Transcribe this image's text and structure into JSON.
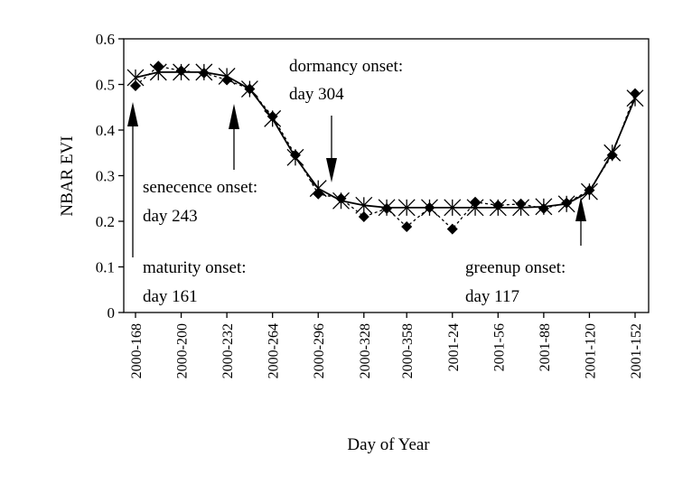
{
  "chart_data": {
    "type": "line",
    "xlabel": "Day of  Year",
    "ylabel": "NBAR EVI",
    "ylim": [
      0,
      0.6
    ],
    "y_ticks": [
      "0",
      "0.1",
      "0.2",
      "0.3",
      "0.4",
      "0.5",
      "0.6"
    ],
    "x_ticks": [
      "2000-168",
      "2000-200",
      "2000-232",
      "2000-264",
      "2000-296",
      "2000-328",
      "2000-358",
      "2001-24",
      "2001-56",
      "2001-88",
      "2001-120",
      "2001-152"
    ],
    "grid": false,
    "legend": "none",
    "series": [
      {
        "marker": "diamond",
        "line": "dashed",
        "x": [
          "2000-168",
          "2000-184",
          "2000-200",
          "2000-216",
          "2000-232",
          "2000-248",
          "2000-264",
          "2000-280",
          "2000-296",
          "2000-312",
          "2000-328",
          "2000-344",
          "2000-358",
          "2001-8",
          "2001-24",
          "2001-40",
          "2001-56",
          "2001-72",
          "2001-88",
          "2001-104",
          "2001-120",
          "2001-136",
          "2001-152"
        ],
        "values": [
          0.497,
          0.54,
          0.53,
          0.525,
          0.51,
          0.49,
          0.43,
          0.345,
          0.26,
          0.25,
          0.21,
          0.228,
          0.188,
          0.23,
          0.183,
          0.242,
          0.235,
          0.238,
          0.228,
          0.24,
          0.268,
          0.345,
          0.48
        ]
      },
      {
        "marker": "asterisk",
        "line": "solid",
        "x": [
          "2000-168",
          "2000-184",
          "2000-200",
          "2000-216",
          "2000-232",
          "2000-248",
          "2000-264",
          "2000-280",
          "2000-296",
          "2000-312",
          "2000-328",
          "2000-344",
          "2000-358",
          "2001-8",
          "2001-24",
          "2001-40",
          "2001-56",
          "2001-72",
          "2001-88",
          "2001-104",
          "2001-120",
          "2001-136",
          "2001-152"
        ],
        "values": [
          0.515,
          0.527,
          0.527,
          0.527,
          0.518,
          0.49,
          0.425,
          0.34,
          0.272,
          0.245,
          0.235,
          0.23,
          0.23,
          0.23,
          0.23,
          0.23,
          0.23,
          0.23,
          0.232,
          0.238,
          0.265,
          0.35,
          0.47
        ]
      }
    ],
    "annotations": [
      {
        "line1": "maturity onset:",
        "line2": "day  161",
        "arrow_x": "2000-168",
        "arrow_direction": "up"
      },
      {
        "line1": "senecence onset:",
        "line2": "day 243",
        "arrow_x": "2000-236",
        "arrow_direction": "up"
      },
      {
        "line1": "dormancy onset:",
        "line2": "day  304",
        "arrow_x": "2000-304",
        "arrow_direction": "down"
      },
      {
        "line1": "greenup onset:",
        "line2": "day  117",
        "arrow_x": "2001-117",
        "arrow_direction": "up"
      }
    ]
  }
}
